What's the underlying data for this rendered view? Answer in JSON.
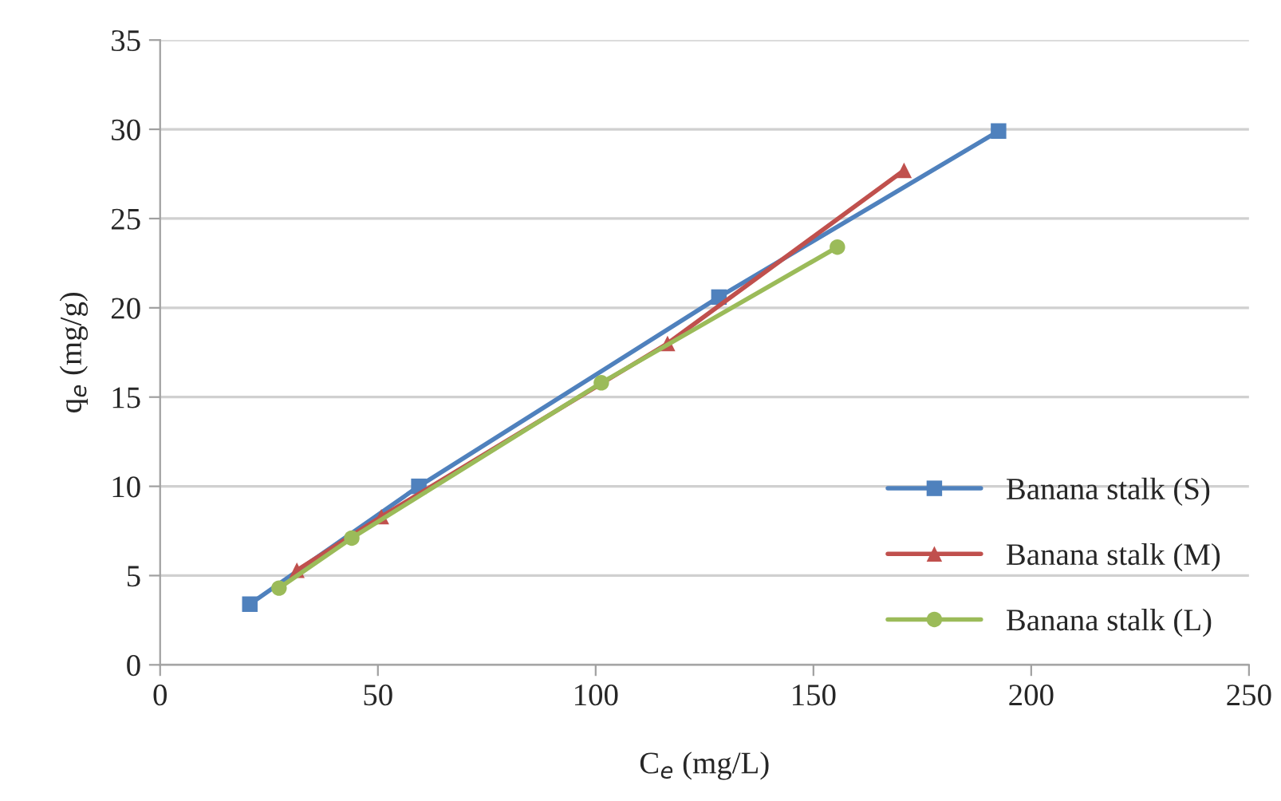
{
  "chart_data": {
    "type": "line",
    "xlabel": "C$_{e}$ (mg/L)",
    "ylabel": "q$_{e}$ (mg/g)",
    "xlim": [
      0,
      250
    ],
    "xticks": [
      0,
      50,
      100,
      150,
      200,
      250
    ],
    "ylim": [
      0,
      35
    ],
    "yticks": [
      0,
      5,
      10,
      15,
      20,
      25,
      30,
      35
    ],
    "grid": "y",
    "legend": "bottom right",
    "series": [
      {
        "name": "Banana stalk (S)",
        "color": "#4f81bd",
        "marker": "square",
        "x": [
          20.6,
          59.4,
          128.3,
          192.5
        ],
        "values": [
          3.4,
          10.0,
          20.6,
          29.9
        ]
      },
      {
        "name": "Banana stalk (M)",
        "color": "#c0504d",
        "marker": "triangle",
        "x": [
          31.4,
          50.8,
          116.5,
          170.8
        ],
        "values": [
          5.3,
          8.3,
          18.0,
          27.7
        ]
      },
      {
        "name": "Banana stalk (L)",
        "color": "#9bbb59",
        "marker": "circle",
        "x": [
          27.3,
          44.0,
          101.3,
          155.5
        ],
        "values": [
          4.3,
          7.1,
          15.8,
          23.4
        ]
      }
    ]
  }
}
